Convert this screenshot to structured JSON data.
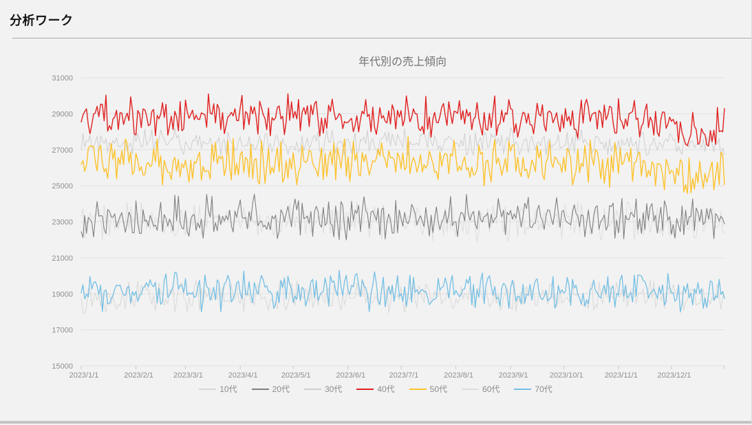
{
  "page": {
    "title": "分析ワーク"
  },
  "chart_data": {
    "type": "line",
    "title": "年代別の売上傾向",
    "xlabel": "",
    "ylabel": "",
    "grid": true,
    "legend_position": "bottom",
    "ylim": [
      15000,
      31000
    ],
    "y_ticks": [
      31000,
      29000,
      27000,
      25000,
      23000,
      21000,
      19000,
      17000,
      15000
    ],
    "x_ticks": [
      "2023/1/1",
      "2023/2/1",
      "2023/3/1",
      "2023/4/1",
      "2023/5/1",
      "2023/6/1",
      "2023/7/1",
      "2023/8/1",
      "2023/9/1",
      "2023/10/1",
      "2023/11/1",
      "2023/12/1"
    ],
    "x_tick_days": [
      0,
      31,
      59,
      90,
      120,
      151,
      181,
      212,
      243,
      273,
      304,
      334
    ],
    "end_tick_day": 364,
    "n_points": 365,
    "x_range": [
      "2023/1/1",
      "2023/12/31"
    ],
    "colors": {
      "grid": "#e0e0e0",
      "tick": "#c9c9c9",
      "axis_text": "#8e8e8e",
      "title": "#737373"
    },
    "series": [
      {
        "name": "10代",
        "color": "#d8d8d8",
        "width": 1,
        "seed": 13,
        "amplitude": 1000,
        "levels": [
          18850,
          18900,
          18850,
          18800,
          18850,
          18900,
          18850,
          18800,
          18850,
          18850,
          18900,
          18800,
          18850
        ]
      },
      {
        "name": "20代",
        "color": "#808080",
        "width": 1.1,
        "seed": 27,
        "amplitude": 1400,
        "levels": [
          23250,
          23300,
          23200,
          23250,
          23300,
          23250,
          23200,
          23250,
          23300,
          23250,
          23200,
          23250,
          23300
        ]
      },
      {
        "name": "30代",
        "color": "#cfcfcf",
        "width": 1,
        "seed": 35,
        "amplitude": 850,
        "levels": [
          27400,
          27450,
          27400,
          27350,
          27400,
          27450,
          27400,
          27350,
          27400,
          27400,
          27350,
          27250,
          27150
        ]
      },
      {
        "name": "40代",
        "color": "#e02121",
        "width": 1.4,
        "seed": 47,
        "amplitude": 1300,
        "levels": [
          28900,
          29000,
          28850,
          28900,
          28950,
          28850,
          28900,
          28850,
          28950,
          28900,
          28850,
          28900,
          28950,
          28850,
          28900,
          28850,
          28800,
          28850,
          28800,
          28850,
          28750,
          28700,
          28450,
          27900,
          28350
        ]
      },
      {
        "name": "50代",
        "color": "#fdc22d",
        "width": 1.4,
        "seed": 53,
        "amplitude": 1450,
        "levels": [
          26350,
          26400,
          26300,
          26350,
          26250,
          26350,
          26400,
          26300,
          26250,
          26350,
          26300,
          26400,
          26350,
          26250,
          26300,
          26350,
          26250,
          26300,
          26350,
          26300,
          26250,
          26100,
          25800,
          25450,
          26300
        ]
      },
      {
        "name": "60代",
        "color": "#dddddd",
        "width": 1,
        "seed": 61,
        "amplitude": 1200,
        "levels": [
          23000,
          23050,
          23000,
          22950,
          23000,
          23050,
          23000,
          22950,
          23000,
          23000,
          23050,
          22950,
          23000
        ]
      },
      {
        "name": "70代",
        "color": "#74bfe4",
        "width": 1.3,
        "seed": 71,
        "amplitude": 1250,
        "levels": [
          19150,
          19200,
          19150,
          19100,
          19150,
          19200,
          19150,
          19100,
          19150,
          19150,
          19200,
          19100,
          19150
        ]
      }
    ],
    "draw_order": [
      2,
      5,
      0,
      1,
      3,
      4,
      6
    ]
  }
}
